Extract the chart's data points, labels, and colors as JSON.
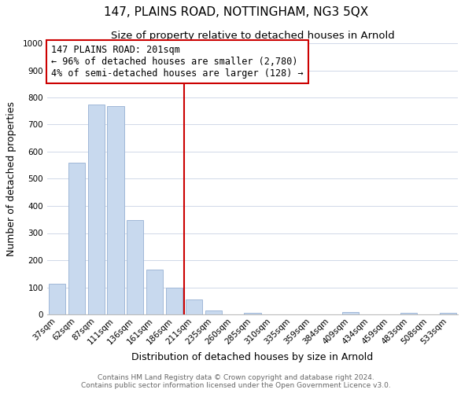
{
  "title": "147, PLAINS ROAD, NOTTINGHAM, NG3 5QX",
  "subtitle": "Size of property relative to detached houses in Arnold",
  "xlabel": "Distribution of detached houses by size in Arnold",
  "ylabel": "Number of detached properties",
  "bar_labels": [
    "37sqm",
    "62sqm",
    "87sqm",
    "111sqm",
    "136sqm",
    "161sqm",
    "186sqm",
    "211sqm",
    "235sqm",
    "260sqm",
    "285sqm",
    "310sqm",
    "335sqm",
    "359sqm",
    "384sqm",
    "409sqm",
    "434sqm",
    "459sqm",
    "483sqm",
    "508sqm",
    "533sqm"
  ],
  "bar_values": [
    113,
    560,
    775,
    768,
    348,
    165,
    100,
    55,
    15,
    0,
    5,
    0,
    0,
    0,
    0,
    10,
    0,
    0,
    5,
    0,
    5
  ],
  "bar_color": "#c8d9ee",
  "bar_edge_color": "#a0b8d8",
  "vline_color": "#cc0000",
  "annotation_text": "147 PLAINS ROAD: 201sqm\n← 96% of detached houses are smaller (2,780)\n4% of semi-detached houses are larger (128) →",
  "annotation_box_edge": "#cc0000",
  "ylim": [
    0,
    1000
  ],
  "yticks": [
    0,
    100,
    200,
    300,
    400,
    500,
    600,
    700,
    800,
    900,
    1000
  ],
  "grid_color": "#d0d8e8",
  "footer_line1": "Contains HM Land Registry data © Crown copyright and database right 2024.",
  "footer_line2": "Contains public sector information licensed under the Open Government Licence v3.0.",
  "title_fontsize": 11,
  "subtitle_fontsize": 9.5,
  "axis_label_fontsize": 9,
  "tick_fontsize": 7.5,
  "annotation_fontsize": 8.5,
  "footer_fontsize": 6.5
}
